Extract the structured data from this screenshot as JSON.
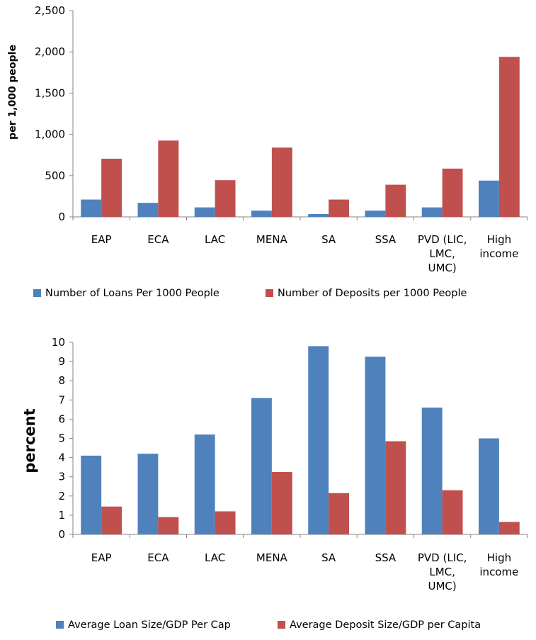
{
  "colors": {
    "loans": "#4F81BD",
    "deposits": "#C0504D",
    "axis": "#868686",
    "text": "#000000"
  },
  "chart_data": [
    {
      "type": "bar",
      "title": "",
      "xlabel": "",
      "ylabel": "per 1,000 people",
      "ylim": [
        0,
        2500
      ],
      "yticks": [
        "0",
        "500",
        "1,000",
        "1,500",
        "2,000",
        "2,500"
      ],
      "ytick_values": [
        0,
        500,
        1000,
        1500,
        2000,
        2500
      ],
      "grid": false,
      "legend_position": "bottom",
      "categories": [
        [
          "EAP"
        ],
        [
          "ECA"
        ],
        [
          "LAC"
        ],
        [
          "MENA"
        ],
        [
          "SA"
        ],
        [
          "SSA"
        ],
        [
          "PVD (LIC,",
          "LMC,",
          "UMC)"
        ],
        [
          "High",
          "income"
        ]
      ],
      "series": [
        {
          "name": "Number of Loans Per 1000 People",
          "color": "#4F81BD",
          "values": [
            210,
            170,
            115,
            75,
            35,
            75,
            115,
            440
          ]
        },
        {
          "name": "Number of Deposits per 1000 People",
          "color": "#C0504D",
          "values": [
            705,
            925,
            445,
            840,
            210,
            390,
            585,
            1940
          ]
        }
      ]
    },
    {
      "type": "bar",
      "title": "",
      "xlabel": "",
      "ylabel": "percent",
      "ylim": [
        0,
        10
      ],
      "yticks": [
        "0",
        "1",
        "2",
        "3",
        "4",
        "5",
        "6",
        "7",
        "8",
        "9",
        "10"
      ],
      "ytick_values": [
        0,
        1,
        2,
        3,
        4,
        5,
        6,
        7,
        8,
        9,
        10
      ],
      "grid": false,
      "legend_position": "bottom",
      "categories": [
        [
          "EAP"
        ],
        [
          "ECA"
        ],
        [
          "LAC"
        ],
        [
          "MENA"
        ],
        [
          "SA"
        ],
        [
          "SSA"
        ],
        [
          "PVD (LIC,",
          "LMC,",
          "UMC)"
        ],
        [
          "High",
          "income"
        ]
      ],
      "series": [
        {
          "name": "Average Loan Size/GDP  Per Cap",
          "color": "#4F81BD",
          "values": [
            4.1,
            4.2,
            5.2,
            7.1,
            9.8,
            9.25,
            6.6,
            5.0
          ]
        },
        {
          "name": "Average Deposit Size/GDP per Capita",
          "color": "#C0504D",
          "values": [
            1.45,
            0.9,
            1.2,
            3.25,
            2.15,
            4.85,
            2.3,
            0.65
          ]
        }
      ]
    }
  ]
}
